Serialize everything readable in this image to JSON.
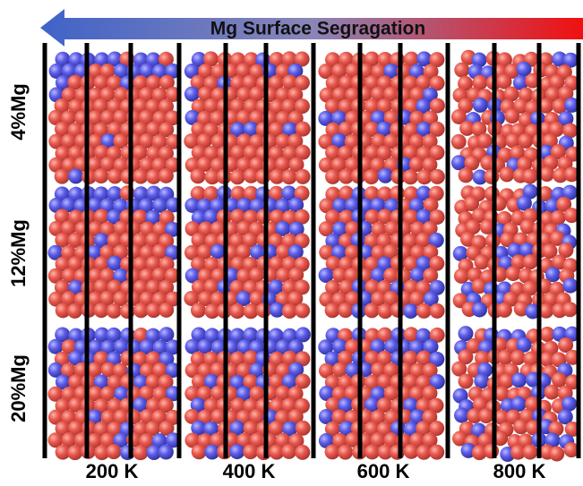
{
  "header": {
    "title": "Mg Surface Segragation"
  },
  "rows": [
    "4%Mg",
    "12%Mg",
    "20%Mg"
  ],
  "columns": [
    "200 K",
    "400 K",
    "600 K",
    "800 K"
  ]
}
